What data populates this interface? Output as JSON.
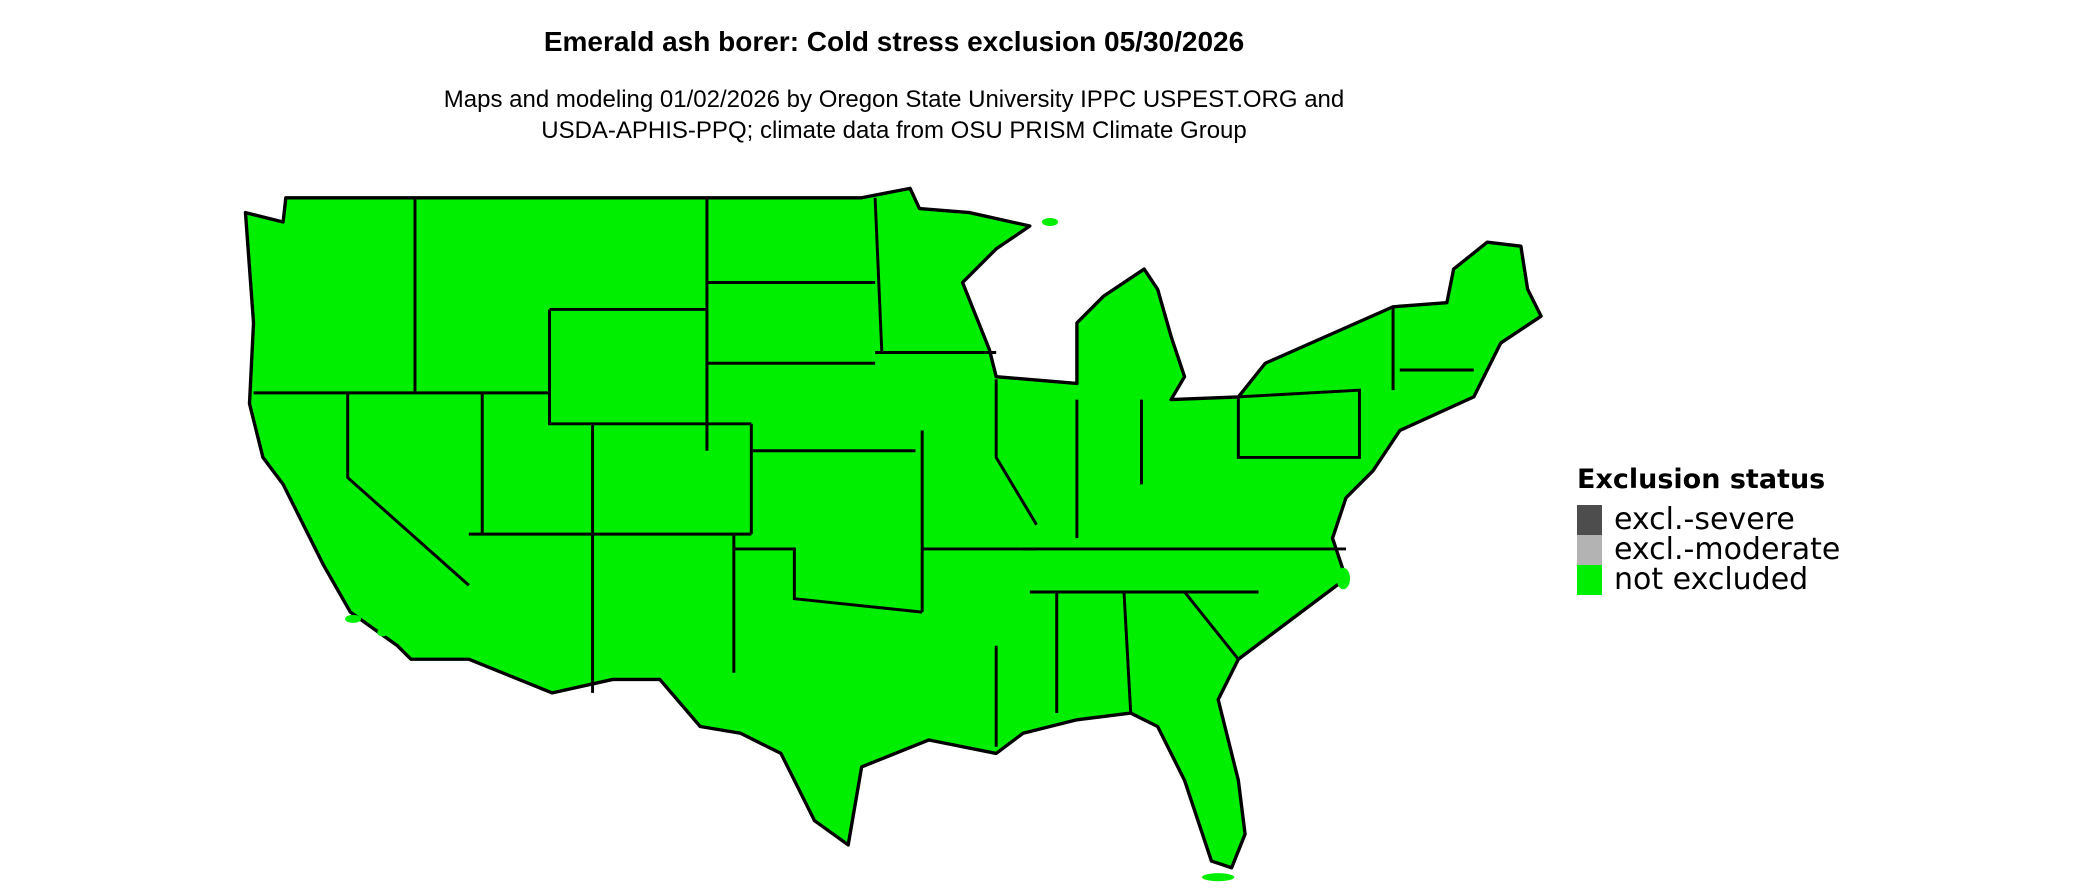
{
  "title": "Emerald ash borer: Cold stress exclusion 05/30/2026",
  "subtitle_line1": "Maps and modeling 01/02/2026 by Oregon State University IPPC USPEST.ORG and",
  "subtitle_line2": "USDA-APHIS-PPQ; climate data from OSU PRISM Climate Group",
  "map": {
    "region": "Contiguous United States",
    "fill_status": "not excluded",
    "border_color": "#000000"
  },
  "legend": {
    "title": "Exclusion status",
    "items": [
      {
        "label": "excl.-severe",
        "color": "#4d4d4d"
      },
      {
        "label": "excl.-moderate",
        "color": "#b3b3b3"
      },
      {
        "label": "not excluded",
        "color": "#00ee00"
      }
    ]
  }
}
